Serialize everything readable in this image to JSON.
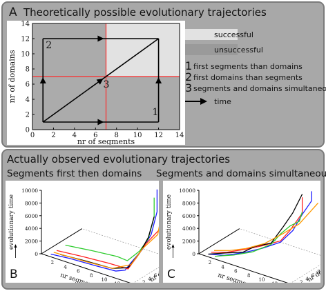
{
  "panel_a": {
    "letter": "A",
    "title": "Theoretically possible evolutionary trajectories",
    "chart_data": {
      "type": "diagram",
      "xlabel": "nr of segments",
      "ylabel": "nr of domains",
      "xlim": [
        0,
        14
      ],
      "ylim": [
        0,
        14
      ],
      "xticks": [
        "0",
        "2",
        "4",
        "6",
        "8",
        "10",
        "12",
        "14"
      ],
      "yticks": [
        "0",
        "2",
        "4",
        "6",
        "8",
        "10",
        "12",
        "14"
      ],
      "regions": {
        "successful_color": "#e2e2e2",
        "unsuccessful_color": "#ababab",
        "threshold_x": 7,
        "threshold_y": 7
      },
      "trajectories": [
        {
          "label": "1",
          "points": [
            [
              1,
              1
            ],
            [
              12,
              1
            ],
            [
              12,
              12
            ]
          ]
        },
        {
          "label": "2",
          "points": [
            [
              1,
              1
            ],
            [
              1,
              12
            ],
            [
              12,
              12
            ]
          ]
        },
        {
          "label": "3",
          "points": [
            [
              1,
              1
            ],
            [
              12,
              12
            ]
          ]
        }
      ]
    },
    "legend": {
      "successful": "successful",
      "unsuccessful": "unsuccessful",
      "items": [
        {
          "num": "1",
          "text": "first segments than domains"
        },
        {
          "num": "2",
          "text": "first domains than segments"
        },
        {
          "num": "3",
          "text": "segments and domains simultaneous"
        }
      ],
      "time_label": "time"
    }
  },
  "panel_bc": {
    "title": "Actually observed evolutionary trajectories",
    "plots": [
      {
        "letter": "B",
        "subtitle": "Segments first then domains",
        "zlabel": "evolutionary time",
        "xlabel": "nr segments",
        "ylabel": "nr domains",
        "zticks": [
          "0",
          "2000",
          "4000",
          "6000",
          "8000",
          "10000"
        ],
        "xticks": [
          "2",
          "4",
          "6",
          "8",
          "10",
          "12",
          "14"
        ],
        "yticks": [
          "0",
          "2",
          "4",
          "6",
          "8",
          "10",
          "12",
          "14"
        ]
      },
      {
        "letter": "C",
        "subtitle": "Segments and domains simultaneous",
        "zlabel": "evolutionary time",
        "xlabel": "nr segments",
        "ylabel": "nr domains",
        "zticks": [
          "0",
          "2000",
          "4000",
          "6000",
          "8000",
          "10000"
        ],
        "xticks": [
          "2",
          "4",
          "6",
          "8",
          "10",
          "12",
          "14"
        ],
        "yticks": [
          "0",
          "2",
          "4",
          "6",
          "8",
          "10",
          "12",
          "14"
        ]
      }
    ]
  }
}
